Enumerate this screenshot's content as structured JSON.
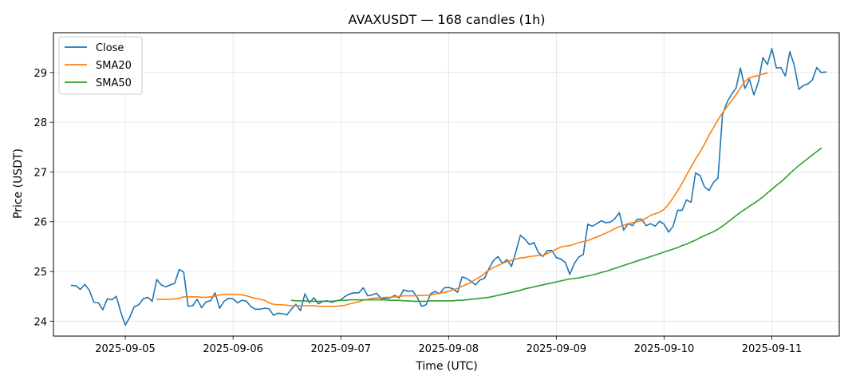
{
  "chart_data": {
    "type": "line",
    "title": "AVAXUSDT — 168 candles (1h)",
    "xlabel": "Time (UTC)",
    "ylabel": "Price (USDT)",
    "x_start": "2025-09-04 12:00",
    "x_end": "2025-09-11 11:00",
    "x_interval": "1h",
    "xlim": [
      "2025-09-04 08:00",
      "2025-09-11 15:00"
    ],
    "ylim": [
      23.7,
      29.8
    ],
    "xticks": [
      "2025-09-05",
      "2025-09-06",
      "2025-09-07",
      "2025-09-08",
      "2025-09-09",
      "2025-09-10",
      "2025-09-11"
    ],
    "yticks": [
      24,
      25,
      26,
      27,
      28,
      29
    ],
    "grid": true,
    "legend_position": "upper left",
    "series": [
      {
        "name": "Close",
        "color": "#1f77b4",
        "values": [
          24.72,
          24.71,
          24.64,
          24.74,
          24.62,
          24.38,
          24.37,
          24.23,
          24.45,
          24.43,
          24.5,
          24.18,
          23.92,
          24.08,
          24.29,
          24.33,
          24.45,
          24.48,
          24.4,
          24.84,
          24.73,
          24.69,
          24.73,
          24.76,
          25.04,
          24.99,
          24.3,
          24.31,
          24.44,
          24.27,
          24.39,
          24.41,
          24.57,
          24.26,
          24.4,
          24.46,
          24.45,
          24.37,
          24.42,
          24.4,
          24.29,
          24.24,
          24.24,
          24.26,
          24.25,
          24.12,
          24.16,
          24.15,
          24.13,
          24.24,
          24.34,
          24.21,
          24.55,
          24.37,
          24.47,
          24.35,
          24.4,
          24.41,
          24.38,
          24.41,
          24.43,
          24.5,
          24.55,
          24.57,
          24.57,
          24.67,
          24.51,
          24.53,
          24.56,
          24.45,
          24.46,
          24.47,
          24.52,
          24.47,
          24.63,
          24.6,
          24.61,
          24.48,
          24.3,
          24.33,
          24.55,
          24.6,
          24.55,
          24.67,
          24.68,
          24.65,
          24.58,
          24.89,
          24.86,
          24.8,
          24.73,
          24.83,
          24.86,
          25.06,
          25.22,
          25.3,
          25.16,
          25.24,
          25.1,
          25.4,
          25.73,
          25.65,
          25.54,
          25.58,
          25.38,
          25.3,
          25.42,
          25.42,
          25.28,
          25.25,
          25.18,
          24.94,
          25.16,
          25.29,
          25.34,
          25.95,
          25.91,
          25.96,
          26.02,
          25.98,
          25.99,
          26.06,
          26.18,
          25.83,
          25.96,
          25.92,
          26.05,
          26.05,
          25.92,
          25.96,
          25.91,
          26.01,
          25.95,
          25.79,
          25.91,
          26.23,
          26.23,
          26.44,
          26.39,
          26.98,
          26.93,
          26.7,
          26.63,
          26.79,
          26.88,
          28.15,
          28.4,
          28.56,
          28.68,
          29.09,
          28.68,
          28.86,
          28.55,
          28.81,
          29.3,
          29.16,
          29.48,
          29.09,
          29.1,
          28.93,
          29.42,
          29.14,
          28.66,
          28.74,
          28.77,
          28.85,
          29.1,
          29.0,
          29.01
        ]
      },
      {
        "name": "SMA20",
        "color": "#ff7f0e",
        "values": [
          null,
          null,
          null,
          null,
          null,
          null,
          null,
          null,
          null,
          null,
          null,
          null,
          null,
          null,
          null,
          null,
          null,
          null,
          null,
          24.44,
          24.44,
          24.44,
          24.44,
          24.45,
          24.46,
          24.49,
          24.49,
          24.49,
          24.49,
          24.48,
          24.48,
          24.49,
          24.5,
          24.53,
          24.54,
          24.54,
          24.54,
          24.54,
          24.53,
          24.51,
          24.48,
          24.46,
          24.44,
          24.42,
          24.37,
          24.34,
          24.33,
          24.33,
          24.32,
          24.31,
          24.31,
          24.31,
          24.31,
          24.31,
          24.31,
          24.3,
          24.3,
          24.3,
          24.3,
          24.3,
          24.31,
          24.32,
          24.35,
          24.37,
          24.39,
          24.42,
          24.44,
          24.46,
          24.47,
          24.47,
          24.48,
          24.48,
          24.49,
          24.5,
          24.51,
          24.51,
          24.51,
          24.51,
          24.52,
          24.52,
          24.53,
          24.55,
          24.56,
          24.58,
          24.6,
          24.63,
          24.66,
          24.7,
          24.74,
          24.78,
          24.84,
          24.89,
          24.96,
          25.03,
          25.08,
          25.12,
          25.16,
          25.2,
          25.22,
          25.25,
          25.27,
          25.28,
          25.3,
          25.31,
          25.32,
          25.32,
          25.36,
          25.4,
          25.45,
          25.49,
          25.51,
          25.52,
          25.55,
          25.58,
          25.6,
          25.62,
          25.66,
          25.69,
          25.73,
          25.77,
          25.81,
          25.86,
          25.9,
          25.93,
          25.96,
          25.98,
          26.0,
          26.02,
          26.07,
          26.13,
          26.16,
          26.19,
          26.25,
          26.35,
          26.48,
          26.62,
          26.77,
          26.94,
          27.1,
          27.26,
          27.4,
          27.56,
          27.74,
          27.89,
          28.05,
          28.19,
          28.31,
          28.43,
          28.55,
          28.69,
          28.82,
          28.89,
          28.92,
          28.94,
          28.97,
          28.99
        ]
      },
      {
        "name": "SMA50",
        "color": "#2ca02c",
        "values": [
          null,
          null,
          null,
          null,
          null,
          null,
          null,
          null,
          null,
          null,
          null,
          null,
          null,
          null,
          null,
          null,
          null,
          null,
          null,
          null,
          null,
          null,
          null,
          null,
          null,
          null,
          null,
          null,
          null,
          null,
          null,
          null,
          null,
          null,
          null,
          null,
          null,
          null,
          null,
          null,
          null,
          null,
          null,
          null,
          null,
          null,
          null,
          null,
          null,
          24.42,
          24.41,
          24.41,
          24.41,
          24.4,
          24.4,
          24.4,
          24.4,
          24.4,
          24.4,
          24.41,
          24.42,
          24.42,
          24.43,
          24.43,
          24.43,
          24.43,
          24.43,
          24.43,
          24.43,
          24.43,
          24.43,
          24.42,
          24.42,
          24.42,
          24.41,
          24.41,
          24.4,
          24.4,
          24.4,
          24.4,
          24.41,
          24.41,
          24.41,
          24.41,
          24.41,
          24.41,
          24.42,
          24.42,
          24.43,
          24.44,
          24.45,
          24.46,
          24.47,
          24.48,
          24.5,
          24.52,
          24.54,
          24.56,
          24.58,
          24.6,
          24.62,
          24.65,
          24.67,
          24.69,
          24.71,
          24.73,
          24.75,
          24.77,
          24.79,
          24.81,
          24.83,
          24.85,
          24.86,
          24.87,
          24.89,
          24.91,
          24.93,
          24.95,
          24.98,
          25.0,
          25.03,
          25.06,
          25.09,
          25.12,
          25.15,
          25.18,
          25.21,
          25.24,
          25.27,
          25.3,
          25.33,
          25.36,
          25.39,
          25.42,
          25.45,
          25.48,
          25.52,
          25.55,
          25.59,
          25.63,
          25.68,
          25.72,
          25.76,
          25.8,
          25.85,
          25.91,
          25.98,
          26.05,
          26.12,
          26.19,
          26.25,
          26.31,
          26.37,
          26.43,
          26.5,
          26.58,
          26.65,
          26.73,
          26.8,
          26.88,
          26.97,
          27.05,
          27.13,
          27.2,
          27.27,
          27.34,
          27.41,
          27.48
        ]
      }
    ]
  }
}
